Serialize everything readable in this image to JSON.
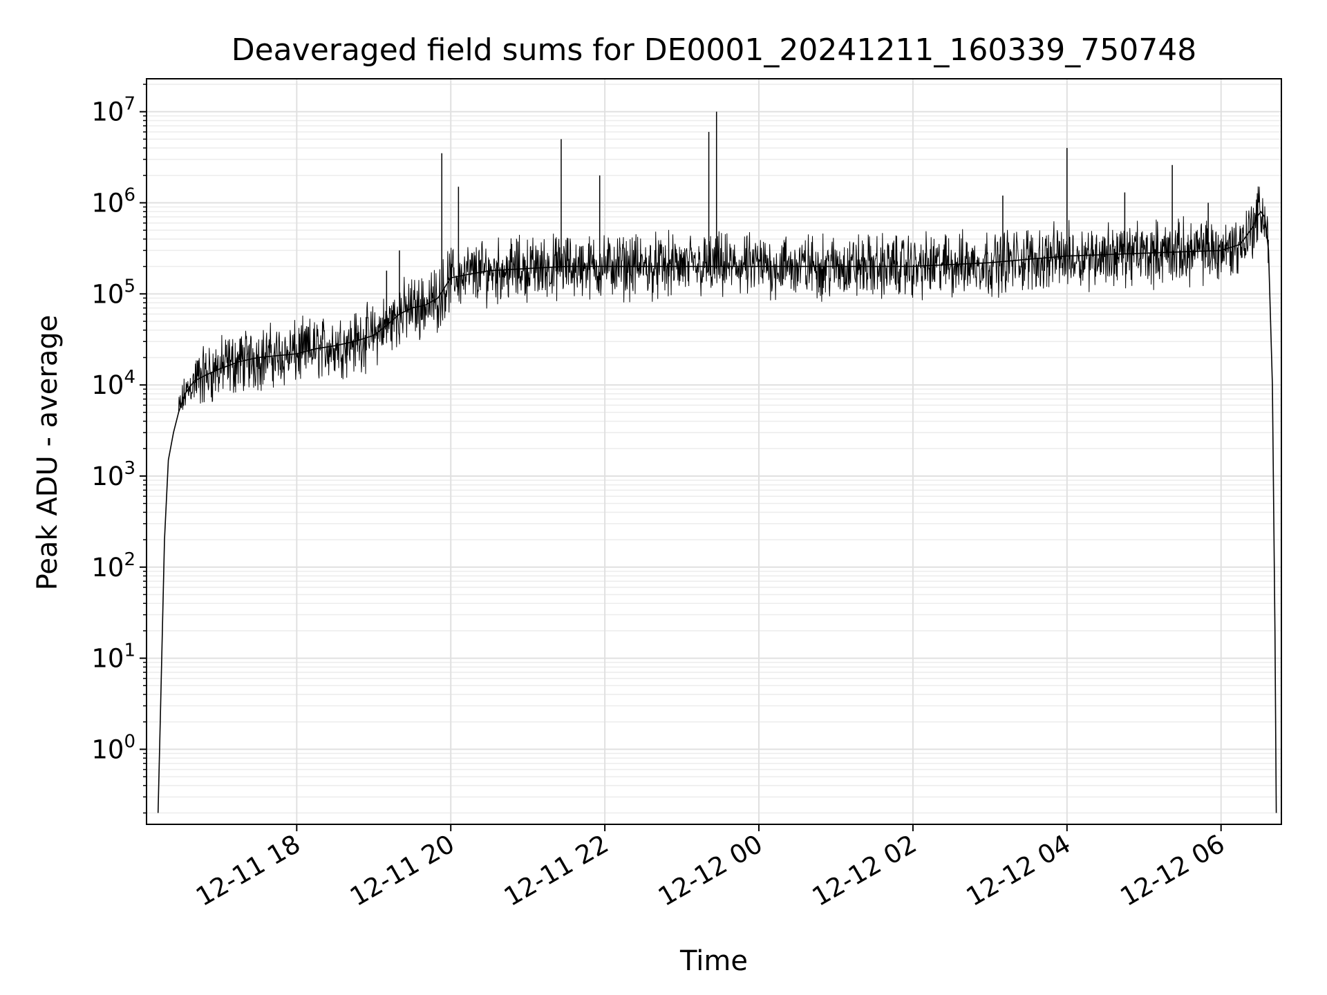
{
  "chart_data": {
    "type": "line",
    "title": "Deaveraged field sums for DE0001_20241211_160339_750748",
    "xlabel": "Time",
    "ylabel": "Peak ADU - average",
    "x_scale": "time",
    "y_scale": "log",
    "xlim": [
      "2024-12-11T16:03:00",
      "2024-12-12T06:47:00"
    ],
    "ylim": [
      0.15,
      23000000
    ],
    "grid": true,
    "line_color": "#000000",
    "x_ticks": [
      "2024-12-11T18:00",
      "2024-12-11T20:00",
      "2024-12-11T22:00",
      "2024-12-12T00:00",
      "2024-12-12T02:00",
      "2024-12-12T04:00",
      "2024-12-12T06:00"
    ],
    "x_tick_labels": [
      "12-11 18",
      "12-11 20",
      "12-11 22",
      "12-12 00",
      "12-12 02",
      "12-12 04",
      "12-12 06"
    ],
    "y_ticks": [
      1,
      10,
      100,
      1000,
      10000,
      100000,
      1000000,
      10000000
    ],
    "y_tick_labels": [
      {
        "base": "10",
        "exp": "0"
      },
      {
        "base": "10",
        "exp": "1"
      },
      {
        "base": "10",
        "exp": "2"
      },
      {
        "base": "10",
        "exp": "3"
      },
      {
        "base": "10",
        "exp": "4"
      },
      {
        "base": "10",
        "exp": "5"
      },
      {
        "base": "10",
        "exp": "6"
      },
      {
        "base": "10",
        "exp": "7"
      }
    ],
    "series": [
      {
        "x": [
          "2024-12-11T16:12",
          "2024-12-11T16:14",
          "2024-12-11T16:17",
          "2024-12-11T16:20",
          "2024-12-11T16:24",
          "2024-12-11T16:28",
          "2024-12-11T16:33",
          "2024-12-11T16:40",
          "2024-12-11T16:50",
          "2024-12-11T17:00",
          "2024-12-11T17:15",
          "2024-12-11T17:30",
          "2024-12-11T17:45",
          "2024-12-11T18:00",
          "2024-12-11T18:15",
          "2024-12-11T18:30",
          "2024-12-11T18:45",
          "2024-12-11T19:00",
          "2024-12-11T19:10",
          "2024-12-11T19:20",
          "2024-12-11T19:30",
          "2024-12-11T19:40",
          "2024-12-11T19:50",
          "2024-12-11T20:00",
          "2024-12-11T20:15",
          "2024-12-11T20:30",
          "2024-12-11T21:00",
          "2024-12-11T21:30",
          "2024-12-11T22:00",
          "2024-12-11T22:30",
          "2024-12-11T23:00",
          "2024-12-11T23:30",
          "2024-12-12T00:00",
          "2024-12-12T00:30",
          "2024-12-12T01:00",
          "2024-12-12T01:30",
          "2024-12-12T02:00",
          "2024-12-12T02:30",
          "2024-12-12T03:00",
          "2024-12-12T03:30",
          "2024-12-12T04:00",
          "2024-12-12T04:30",
          "2024-12-12T05:00",
          "2024-12-12T05:30",
          "2024-12-12T06:00",
          "2024-12-12T06:15",
          "2024-12-12T06:25",
          "2024-12-12T06:28",
          "2024-12-12T06:31",
          "2024-12-12T06:34",
          "2024-12-12T06:37",
          "2024-12-12T06:40",
          "2024-12-12T06:42",
          "2024-12-12T06:43"
        ],
        "y": [
          0.2,
          3,
          200,
          1500,
          3000,
          5000,
          8000,
          11000,
          13000,
          15000,
          18000,
          20000,
          21000,
          22000,
          25000,
          27000,
          30000,
          35000,
          45000,
          60000,
          70000,
          75000,
          90000,
          150000,
          165000,
          180000,
          190000,
          200000,
          200000,
          200000,
          200000,
          200000,
          200000,
          200000,
          200000,
          200000,
          200000,
          210000,
          220000,
          240000,
          260000,
          270000,
          280000,
          290000,
          300000,
          350000,
          550000,
          700000,
          800000,
          700000,
          300000,
          10000,
          20,
          0.2
        ]
      }
    ],
    "spikes": [
      {
        "x": "2024-12-11T19:10",
        "y": 180000
      },
      {
        "x": "2024-12-11T19:20",
        "y": 300000
      },
      {
        "x": "2024-12-11T19:53",
        "y": 3500000
      },
      {
        "x": "2024-12-11T20:06",
        "y": 1500000
      },
      {
        "x": "2024-12-11T21:26",
        "y": 5000000
      },
      {
        "x": "2024-12-11T21:56",
        "y": 2000000
      },
      {
        "x": "2024-12-11T23:21",
        "y": 6000000
      },
      {
        "x": "2024-12-11T23:27",
        "y": 10000000
      },
      {
        "x": "2024-12-12T03:10",
        "y": 1200000
      },
      {
        "x": "2024-12-12T04:00",
        "y": 4000000
      },
      {
        "x": "2024-12-12T04:45",
        "y": 1300000
      },
      {
        "x": "2024-12-12T05:22",
        "y": 2600000
      },
      {
        "x": "2024-12-12T05:50",
        "y": 1000000
      }
    ]
  }
}
